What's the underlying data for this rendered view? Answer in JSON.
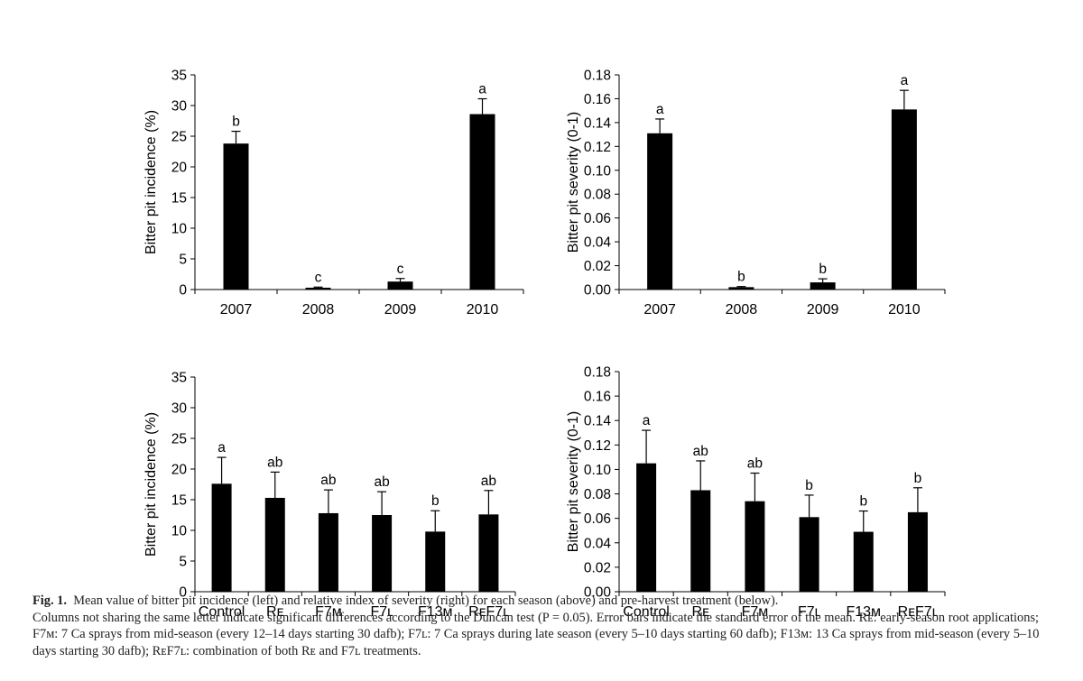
{
  "chart_data": [
    {
      "type": "bar",
      "panel": "top-left",
      "ylabel": "Bitter pit incidence (%)",
      "xlabel": "",
      "categories": [
        "2007",
        "2008",
        "2009",
        "2010"
      ],
      "values": [
        23.8,
        0.3,
        1.3,
        28.6
      ],
      "errors": [
        2.0,
        0.1,
        0.5,
        2.5
      ],
      "letters": [
        "b",
        "c",
        "c",
        "a"
      ],
      "ylim": [
        0,
        35
      ],
      "yticks": [
        "0",
        "5",
        "10",
        "15",
        "20",
        "25",
        "30",
        "35"
      ],
      "grid": false
    },
    {
      "type": "bar",
      "panel": "top-right",
      "ylabel": "Bitter pit severity (0-1)",
      "xlabel": "",
      "categories": [
        "2007",
        "2008",
        "2009",
        "2010"
      ],
      "values": [
        0.131,
        0.002,
        0.006,
        0.151
      ],
      "errors": [
        0.012,
        0.0005,
        0.003,
        0.016
      ],
      "letters": [
        "a",
        "b",
        "b",
        "a"
      ],
      "ylim": [
        0,
        0.18
      ],
      "yticks": [
        "0.00",
        "0.02",
        "0.04",
        "0.06",
        "0.08",
        "0.10",
        "0.12",
        "0.14",
        "0.16",
        "0.18"
      ],
      "grid": false
    },
    {
      "type": "bar",
      "panel": "bottom-left",
      "ylabel": "Bitter pit incidence (%)",
      "xlabel": "",
      "categories": [
        "Control",
        "Rᴇ",
        "F7ᴍ",
        "F7ʟ",
        "F13ᴍ",
        "RᴇF7ʟ"
      ],
      "values": [
        17.6,
        15.3,
        12.8,
        12.5,
        9.8,
        12.6
      ],
      "errors": [
        4.3,
        4.2,
        3.8,
        3.8,
        3.4,
        3.9
      ],
      "letters": [
        "a",
        "ab",
        "ab",
        "ab",
        "b",
        "ab"
      ],
      "ylim": [
        0,
        35
      ],
      "yticks": [
        "0",
        "5",
        "10",
        "15",
        "20",
        "25",
        "30",
        "35"
      ],
      "grid": false
    },
    {
      "type": "bar",
      "panel": "bottom-right",
      "ylabel": "Bitter pit severity (0-1)",
      "xlabel": "",
      "categories": [
        "Control",
        "Rᴇ",
        "F7ᴍ",
        "F7ʟ",
        "F13ᴍ",
        "RᴇF7ʟ"
      ],
      "values": [
        0.105,
        0.083,
        0.074,
        0.061,
        0.049,
        0.065
      ],
      "errors": [
        0.027,
        0.024,
        0.023,
        0.018,
        0.017,
        0.02
      ],
      "letters": [
        "a",
        "ab",
        "ab",
        "b",
        "b",
        "b"
      ],
      "ylim": [
        0,
        0.18
      ],
      "yticks": [
        "0.00",
        "0.02",
        "0.04",
        "0.06",
        "0.08",
        "0.10",
        "0.12",
        "0.14",
        "0.16",
        "0.18"
      ],
      "grid": false
    }
  ],
  "caption": {
    "label": "Fig. 1.",
    "line1": "Mean value of bitter pit incidence (left) and relative index of severity (right) for each season (above) and pre-harvest treatment (below).",
    "line2": "Columns not sharing the same letter indicate significant differences according to the Duncan test (P = 0.05). Error bars indicate the standard error of the mean. Rᴇ: early-season root applications; F7ᴍ: 7 Ca sprays from mid-season (every 12–14 days starting 30 dafb); F7ʟ: 7 Ca sprays during late season (every 5–10 days starting 60 dafb); F13ᴍ: 13 Ca sprays from mid-season (every 5–10 days starting 30 dafb); RᴇF7ʟ: combination of both Rᴇ and F7ʟ treatments."
  },
  "colors": {
    "bar": "#000000",
    "axis": "#000000",
    "caption_text": "#222222"
  }
}
